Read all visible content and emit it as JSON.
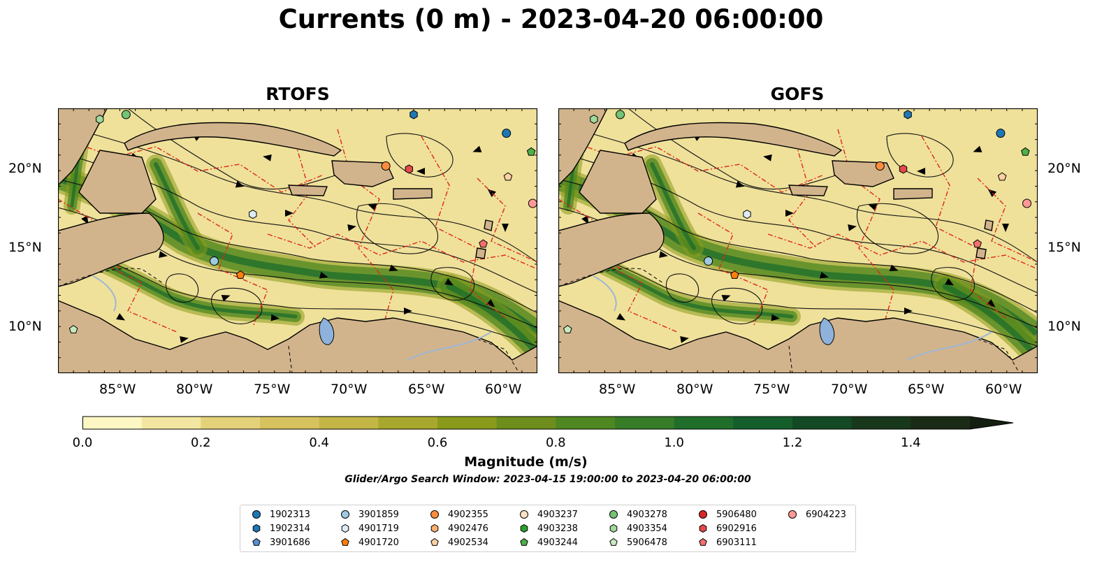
{
  "title": "Currents (0 m) - 2023-04-20 06:00:00",
  "panels": [
    {
      "title": "RTOFS"
    },
    {
      "title": "GOFS"
    }
  ],
  "lat_labels": [
    "20°N",
    "15°N",
    "10°N"
  ],
  "lon_labels": [
    "85°W",
    "80°W",
    "75°W",
    "70°W",
    "65°W",
    "60°W"
  ],
  "colorbar": {
    "label": "Magnitude (m/s)",
    "ticks": [
      "0.0",
      "0.2",
      "0.4",
      "0.6",
      "0.8",
      "1.0",
      "1.2",
      "1.4"
    ],
    "min": 0.0,
    "max": 1.5,
    "extend": "max",
    "colors": [
      "#fdf7c4",
      "#f3e6a0",
      "#e4d27a",
      "#d6c25e",
      "#c4b646",
      "#a9a82e",
      "#8a9b1c",
      "#6d8e1c",
      "#4f8720",
      "#377d28",
      "#1f6e2a",
      "#145e2c",
      "#134a25",
      "#18381c",
      "#1a2a16"
    ]
  },
  "map": {
    "extent": {
      "lon": [
        -89,
        -58
      ],
      "lat": [
        7,
        24
      ]
    },
    "land_color": "#d2b48c",
    "lake_color": "#8eb2dc"
  },
  "search_window": "Glider/Argo Search Window: 2023-04-15 19:00:00 to 2023-04-20 06:00:00",
  "legend": [
    {
      "id": "1902313",
      "color": "#1f77b4",
      "marker": "circle"
    },
    {
      "id": "1902314",
      "color": "#1f77b4",
      "marker": "hexagon"
    },
    {
      "id": "3901686",
      "color": "#5b8fcf",
      "marker": "pentagon"
    },
    {
      "id": "3901859",
      "color": "#9ecae1",
      "marker": "circle"
    },
    {
      "id": "4901719",
      "color": "#deebf7",
      "marker": "hexagon"
    },
    {
      "id": "4901720",
      "color": "#ff7f0e",
      "marker": "pentagon"
    },
    {
      "id": "4902355",
      "color": "#fd8d3c",
      "marker": "circle"
    },
    {
      "id": "4902476",
      "color": "#fdae6b",
      "marker": "hexagon"
    },
    {
      "id": "4902534",
      "color": "#fdd0a2",
      "marker": "pentagon"
    },
    {
      "id": "4903237",
      "color": "#fde0c5",
      "marker": "circle"
    },
    {
      "id": "4903238",
      "color": "#2ca02c",
      "marker": "hexagon"
    },
    {
      "id": "4903244",
      "color": "#4daf4a",
      "marker": "pentagon"
    },
    {
      "id": "4903278",
      "color": "#74c476",
      "marker": "circle"
    },
    {
      "id": "4903354",
      "color": "#a1d99b",
      "marker": "hexagon"
    },
    {
      "id": "5906478",
      "color": "#c7e9c0",
      "marker": "pentagon"
    },
    {
      "id": "5906480",
      "color": "#d62728",
      "marker": "circle"
    },
    {
      "id": "6902916",
      "color": "#e34a4a",
      "marker": "hexagon"
    },
    {
      "id": "6903111",
      "color": "#f07070",
      "marker": "pentagon"
    },
    {
      "id": "6904223",
      "color": "#ff9896",
      "marker": "circle"
    }
  ],
  "floats": [
    {
      "id": "1902313",
      "lon": -60.0,
      "lat": 22.4
    },
    {
      "id": "1902314",
      "lon": -66.0,
      "lat": 23.6
    },
    {
      "id": "3901859",
      "lon": -78.9,
      "lat": 14.2
    },
    {
      "id": "4901719",
      "lon": -76.4,
      "lat": 17.2
    },
    {
      "id": "4901720",
      "lon": -77.2,
      "lat": 13.3
    },
    {
      "id": "4902355",
      "lon": -67.8,
      "lat": 20.3
    },
    {
      "id": "4902534",
      "lon": -59.9,
      "lat": 19.6
    },
    {
      "id": "4903244",
      "lon": -58.4,
      "lat": 21.2
    },
    {
      "id": "4903278",
      "lon": -84.6,
      "lat": 23.6
    },
    {
      "id": "4903354",
      "lon": -86.3,
      "lat": 23.3
    },
    {
      "id": "5906478",
      "lon": -88.0,
      "lat": 9.8
    },
    {
      "id": "6902916",
      "lon": -66.3,
      "lat": 20.1
    },
    {
      "id": "6903111",
      "lon": -61.5,
      "lat": 15.3
    },
    {
      "id": "6904223",
      "lon": -58.3,
      "lat": 17.9
    }
  ]
}
